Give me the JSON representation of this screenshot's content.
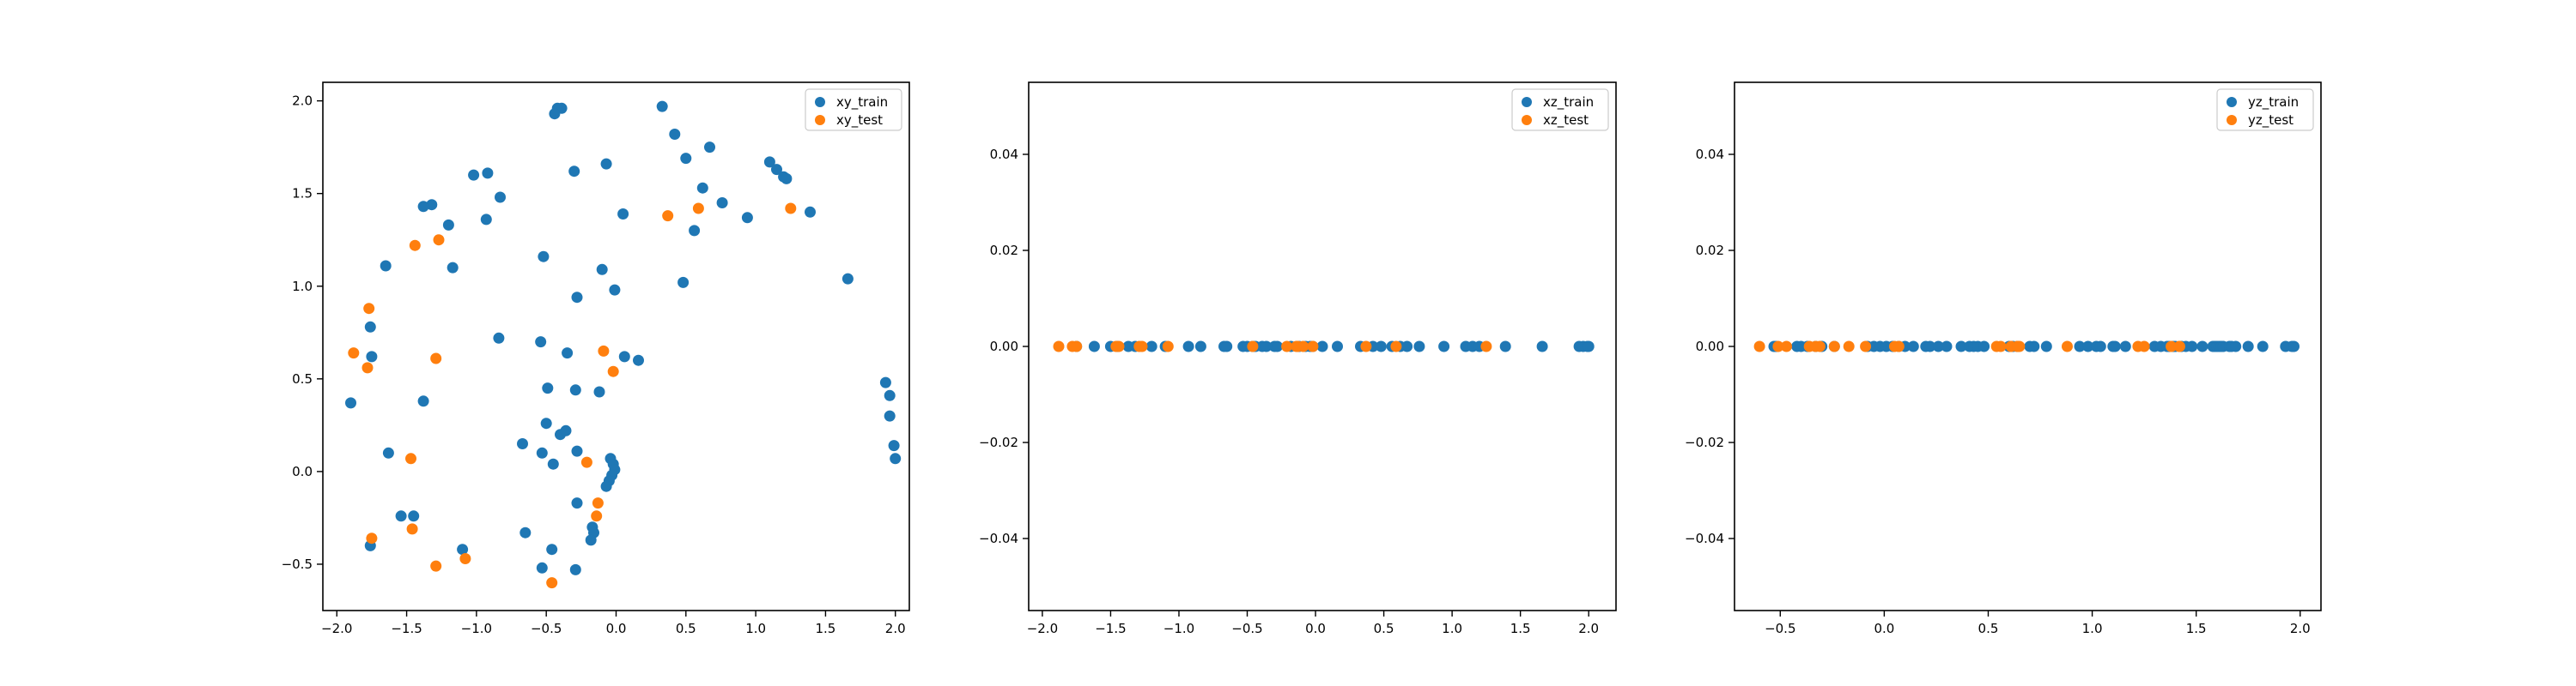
{
  "colors": {
    "train": "#1f77b4",
    "test": "#ff7f0e"
  },
  "chart_data": [
    {
      "type": "scatter",
      "title": "",
      "xlabel": "",
      "ylabel": "",
      "xlim": [
        -2.1,
        2.1
      ],
      "ylim": [
        -0.75,
        2.1
      ],
      "xticks": [
        -2.0,
        -1.5,
        -1.0,
        -0.5,
        0.0,
        0.5,
        1.0,
        1.5,
        2.0
      ],
      "xtick_labels": [
        "−2.0",
        "−1.5",
        "−1.0",
        "−0.5",
        "0.0",
        "0.5",
        "1.0",
        "1.5",
        "2.0"
      ],
      "yticks": [
        -0.5,
        0.0,
        0.5,
        1.0,
        1.5,
        2.0
      ],
      "ytick_labels": [
        "−0.5",
        "0.0",
        "0.5",
        "1.0",
        "1.5",
        "2.0"
      ],
      "grid": false,
      "legend": "top-right",
      "series": [
        {
          "name": "xy_train",
          "points": [
            [
              -0.42,
              1.96
            ],
            [
              -0.39,
              1.96
            ],
            [
              -0.44,
              1.93
            ],
            [
              0.33,
              1.97
            ],
            [
              0.42,
              1.82
            ],
            [
              0.67,
              1.75
            ],
            [
              0.5,
              1.69
            ],
            [
              1.1,
              1.67
            ],
            [
              1.15,
              1.63
            ],
            [
              1.2,
              1.59
            ],
            [
              1.22,
              1.58
            ],
            [
              1.39,
              1.4
            ],
            [
              0.94,
              1.37
            ],
            [
              0.76,
              1.45
            ],
            [
              0.62,
              1.53
            ],
            [
              0.56,
              1.3
            ],
            [
              0.05,
              1.39
            ],
            [
              -0.3,
              1.62
            ],
            [
              -0.07,
              1.66
            ],
            [
              -1.02,
              1.6
            ],
            [
              -0.92,
              1.61
            ],
            [
              -0.83,
              1.48
            ],
            [
              -0.93,
              1.36
            ],
            [
              -1.32,
              1.44
            ],
            [
              -1.38,
              1.43
            ],
            [
              -1.2,
              1.33
            ],
            [
              -1.65,
              1.11
            ],
            [
              -1.17,
              1.1
            ],
            [
              -0.52,
              1.16
            ],
            [
              -0.1,
              1.09
            ],
            [
              -0.28,
              0.94
            ],
            [
              -0.01,
              0.98
            ],
            [
              0.48,
              1.02
            ],
            [
              1.66,
              1.04
            ],
            [
              -1.76,
              0.78
            ],
            [
              -1.75,
              0.62
            ],
            [
              -0.84,
              0.72
            ],
            [
              -0.54,
              0.7
            ],
            [
              -0.35,
              0.64
            ],
            [
              0.06,
              0.62
            ],
            [
              0.16,
              0.6
            ],
            [
              -1.9,
              0.37
            ],
            [
              -1.38,
              0.38
            ],
            [
              -0.49,
              0.45
            ],
            [
              -0.29,
              0.44
            ],
            [
              -0.12,
              0.43
            ],
            [
              1.93,
              0.48
            ],
            [
              1.96,
              0.41
            ],
            [
              1.96,
              0.3
            ],
            [
              1.99,
              0.14
            ],
            [
              2.0,
              0.07
            ],
            [
              -0.67,
              0.15
            ],
            [
              -0.5,
              0.26
            ],
            [
              -0.4,
              0.2
            ],
            [
              -0.36,
              0.22
            ],
            [
              -0.28,
              0.11
            ],
            [
              -0.53,
              0.1
            ],
            [
              -0.45,
              0.04
            ],
            [
              -0.04,
              0.07
            ],
            [
              -0.02,
              0.04
            ],
            [
              -0.01,
              0.01
            ],
            [
              -0.03,
              -0.02
            ],
            [
              -0.05,
              -0.05
            ],
            [
              -0.07,
              -0.08
            ],
            [
              -1.63,
              0.1
            ],
            [
              -1.54,
              -0.24
            ],
            [
              -1.45,
              -0.24
            ],
            [
              -1.76,
              -0.4
            ],
            [
              -1.1,
              -0.42
            ],
            [
              -0.65,
              -0.33
            ],
            [
              -0.28,
              -0.17
            ],
            [
              -0.17,
              -0.3
            ],
            [
              -0.16,
              -0.33
            ],
            [
              -0.18,
              -0.37
            ],
            [
              -0.46,
              -0.42
            ],
            [
              -0.53,
              -0.52
            ],
            [
              -0.29,
              -0.53
            ]
          ]
        },
        {
          "name": "xy_test",
          "points": [
            [
              -1.44,
              1.22
            ],
            [
              -1.27,
              1.25
            ],
            [
              0.37,
              1.38
            ],
            [
              0.59,
              1.42
            ],
            [
              1.25,
              1.42
            ],
            [
              -1.77,
              0.88
            ],
            [
              -1.88,
              0.64
            ],
            [
              -1.78,
              0.56
            ],
            [
              -1.29,
              0.61
            ],
            [
              -0.09,
              0.65
            ],
            [
              -0.02,
              0.54
            ],
            [
              -1.47,
              0.07
            ],
            [
              -0.21,
              0.05
            ],
            [
              -0.13,
              -0.17
            ],
            [
              -0.14,
              -0.24
            ],
            [
              -1.46,
              -0.31
            ],
            [
              -1.75,
              -0.36
            ],
            [
              -1.08,
              -0.47
            ],
            [
              -1.29,
              -0.51
            ],
            [
              -0.46,
              -0.6
            ]
          ]
        }
      ]
    },
    {
      "type": "scatter",
      "title": "",
      "xlabel": "",
      "ylabel": "",
      "xlim": [
        -2.1,
        2.2
      ],
      "ylim": [
        -0.055,
        0.055
      ],
      "xticks": [
        -2.0,
        -1.5,
        -1.0,
        -0.5,
        0.0,
        0.5,
        1.0,
        1.5,
        2.0
      ],
      "xtick_labels": [
        "−2.0",
        "−1.5",
        "−1.0",
        "−0.5",
        "0.0",
        "0.5",
        "1.0",
        "1.5",
        "2.0"
      ],
      "yticks": [
        -0.04,
        -0.02,
        0.0,
        0.02,
        0.04
      ],
      "ytick_labels": [
        "−0.04",
        "−0.02",
        "0.00",
        "0.02",
        "0.04"
      ],
      "grid": false,
      "legend": "top-right",
      "series": [
        {
          "name": "xz_train",
          "points": [
            [
              -1.75,
              0
            ],
            [
              -1.62,
              0
            ],
            [
              -1.5,
              0
            ],
            [
              -1.45,
              0
            ],
            [
              -1.37,
              0
            ],
            [
              -1.32,
              0
            ],
            [
              -1.2,
              0
            ],
            [
              -1.1,
              0
            ],
            [
              -0.93,
              0
            ],
            [
              -0.84,
              0
            ],
            [
              -0.67,
              0
            ],
            [
              -0.65,
              0
            ],
            [
              -0.53,
              0
            ],
            [
              -0.5,
              0
            ],
            [
              -0.46,
              0
            ],
            [
              -0.44,
              0
            ],
            [
              -0.39,
              0
            ],
            [
              -0.36,
              0
            ],
            [
              -0.3,
              0
            ],
            [
              -0.28,
              0
            ],
            [
              -0.18,
              0
            ],
            [
              -0.12,
              0
            ],
            [
              -0.07,
              0
            ],
            [
              -0.04,
              0
            ],
            [
              -0.02,
              0
            ],
            [
              0.05,
              0
            ],
            [
              0.16,
              0
            ],
            [
              0.33,
              0
            ],
            [
              0.42,
              0
            ],
            [
              0.48,
              0
            ],
            [
              0.56,
              0
            ],
            [
              0.62,
              0
            ],
            [
              0.67,
              0
            ],
            [
              0.76,
              0
            ],
            [
              0.94,
              0
            ],
            [
              1.1,
              0
            ],
            [
              1.15,
              0
            ],
            [
              1.2,
              0
            ],
            [
              1.39,
              0
            ],
            [
              1.66,
              0
            ],
            [
              1.93,
              0
            ],
            [
              1.96,
              0
            ],
            [
              1.99,
              0
            ],
            [
              2.0,
              0
            ]
          ]
        },
        {
          "name": "xz_test",
          "points": [
            [
              -1.88,
              0
            ],
            [
              -1.78,
              0
            ],
            [
              -1.75,
              0
            ],
            [
              -1.46,
              0
            ],
            [
              -1.44,
              0
            ],
            [
              -1.29,
              0
            ],
            [
              -1.27,
              0
            ],
            [
              -1.08,
              0
            ],
            [
              -0.46,
              0
            ],
            [
              -0.21,
              0
            ],
            [
              -0.14,
              0
            ],
            [
              -0.13,
              0
            ],
            [
              -0.09,
              0
            ],
            [
              -0.02,
              0
            ],
            [
              0.37,
              0
            ],
            [
              0.59,
              0
            ],
            [
              1.25,
              0
            ]
          ]
        }
      ]
    },
    {
      "type": "scatter",
      "title": "",
      "xlabel": "",
      "ylabel": "",
      "xlim": [
        -0.72,
        2.1
      ],
      "ylim": [
        -0.055,
        0.055
      ],
      "xticks": [
        -0.5,
        0.0,
        0.5,
        1.0,
        1.5,
        2.0
      ],
      "xtick_labels": [
        "−0.5",
        "0.0",
        "0.5",
        "1.0",
        "1.5",
        "2.0"
      ],
      "yticks": [
        -0.04,
        -0.02,
        0.0,
        0.02,
        0.04
      ],
      "ytick_labels": [
        "−0.04",
        "−0.02",
        "0.00",
        "0.02",
        "0.04"
      ],
      "grid": false,
      "legend": "top-right",
      "series": [
        {
          "name": "yz_train",
          "points": [
            [
              -0.53,
              0
            ],
            [
              -0.52,
              0
            ],
            [
              -0.42,
              0
            ],
            [
              -0.4,
              0
            ],
            [
              -0.37,
              0
            ],
            [
              -0.33,
              0
            ],
            [
              -0.3,
              0
            ],
            [
              -0.24,
              0
            ],
            [
              -0.08,
              0
            ],
            [
              -0.05,
              0
            ],
            [
              -0.02,
              0
            ],
            [
              0.01,
              0
            ],
            [
              0.04,
              0
            ],
            [
              0.07,
              0
            ],
            [
              0.1,
              0
            ],
            [
              0.14,
              0
            ],
            [
              0.2,
              0
            ],
            [
              0.22,
              0
            ],
            [
              0.26,
              0
            ],
            [
              0.3,
              0
            ],
            [
              0.37,
              0
            ],
            [
              0.41,
              0
            ],
            [
              0.43,
              0
            ],
            [
              0.45,
              0
            ],
            [
              0.48,
              0
            ],
            [
              0.6,
              0
            ],
            [
              0.62,
              0
            ],
            [
              0.64,
              0
            ],
            [
              0.7,
              0
            ],
            [
              0.72,
              0
            ],
            [
              0.78,
              0
            ],
            [
              0.94,
              0
            ],
            [
              0.98,
              0
            ],
            [
              1.02,
              0
            ],
            [
              1.04,
              0
            ],
            [
              1.1,
              0
            ],
            [
              1.11,
              0
            ],
            [
              1.16,
              0
            ],
            [
              1.3,
              0
            ],
            [
              1.33,
              0
            ],
            [
              1.36,
              0
            ],
            [
              1.37,
              0
            ],
            [
              1.39,
              0
            ],
            [
              1.4,
              0
            ],
            [
              1.43,
              0
            ],
            [
              1.45,
              0
            ],
            [
              1.48,
              0
            ],
            [
              1.53,
              0
            ],
            [
              1.58,
              0
            ],
            [
              1.59,
              0
            ],
            [
              1.6,
              0
            ],
            [
              1.61,
              0
            ],
            [
              1.62,
              0
            ],
            [
              1.63,
              0
            ],
            [
              1.66,
              0
            ],
            [
              1.67,
              0
            ],
            [
              1.69,
              0
            ],
            [
              1.75,
              0
            ],
            [
              1.82,
              0
            ],
            [
              1.93,
              0
            ],
            [
              1.96,
              0
            ],
            [
              1.97,
              0
            ]
          ]
        },
        {
          "name": "yz_test",
          "points": [
            [
              -0.6,
              0
            ],
            [
              -0.51,
              0
            ],
            [
              -0.47,
              0
            ],
            [
              -0.36,
              0
            ],
            [
              -0.33,
              0
            ],
            [
              -0.31,
              0
            ],
            [
              -0.24,
              0
            ],
            [
              -0.17,
              0
            ],
            [
              -0.09,
              0
            ],
            [
              0.05,
              0
            ],
            [
              0.07,
              0
            ],
            [
              0.54,
              0
            ],
            [
              0.56,
              0
            ],
            [
              0.61,
              0
            ],
            [
              0.64,
              0
            ],
            [
              0.65,
              0
            ],
            [
              0.88,
              0
            ],
            [
              1.22,
              0
            ],
            [
              1.25,
              0
            ],
            [
              1.38,
              0
            ],
            [
              1.42,
              0
            ],
            [
              1.42,
              0
            ]
          ]
        }
      ]
    }
  ]
}
